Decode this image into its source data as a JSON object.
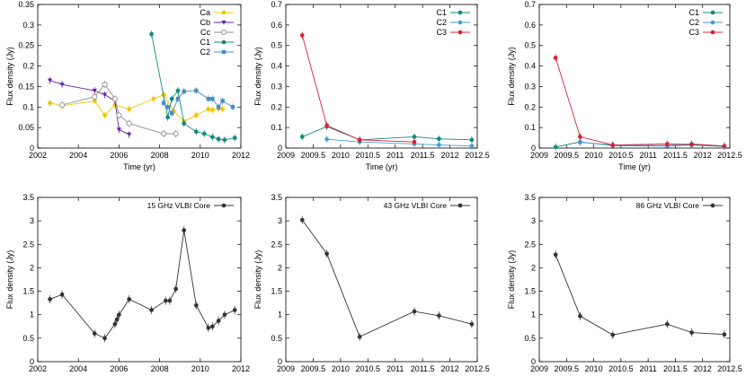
{
  "chart_data": [
    {
      "type": "line",
      "xlabel": "Time (yr)",
      "ylabel": "Flux density (Jy)",
      "xlim": [
        2002,
        2012
      ],
      "ylim": [
        0,
        0.35
      ],
      "xticks": [
        "2002",
        "2004",
        "2006",
        "2008",
        "2010",
        "2012"
      ],
      "yticks": [
        "0",
        "0.05",
        "0.1",
        "0.15",
        "0.2",
        "0.25",
        "0.3",
        "0.35"
      ],
      "legend": "top-right",
      "series": [
        {
          "name": "Ca",
          "color": "#f2c500",
          "marker": "filled-circle",
          "x": [
            2002.6,
            2003.2,
            2004.8,
            2005.3,
            2005.8,
            2006.5,
            2007.7,
            2008.2,
            2008.7,
            2009.2,
            2009.8,
            2010.4,
            2010.6,
            2010.9,
            2011.1
          ],
          "y": [
            0.11,
            0.103,
            0.115,
            0.08,
            0.105,
            0.095,
            0.12,
            0.13,
            0.09,
            0.065,
            0.08,
            0.095,
            0.093,
            0.096,
            0.095
          ]
        },
        {
          "name": "Cb",
          "color": "#6b1fa8",
          "marker": "filled-triangle-down",
          "x": [
            2002.6,
            2003.2,
            2004.8,
            2005.3,
            2005.8,
            2006.0,
            2006.5
          ],
          "y": [
            0.165,
            0.155,
            0.14,
            0.13,
            0.115,
            0.045,
            0.033
          ]
        },
        {
          "name": "Cc",
          "color": "#8c8c8c",
          "marker": "open-circle",
          "x": [
            2003.2,
            2004.8,
            2005.3,
            2005.8,
            2006.0,
            2006.5,
            2008.2,
            2008.8
          ],
          "y": [
            0.105,
            0.125,
            0.155,
            0.12,
            0.08,
            0.06,
            0.035,
            0.035
          ]
        },
        {
          "name": "C1",
          "color": "#0f8c7a",
          "marker": "filled-circle",
          "x": [
            2007.6,
            2008.4,
            2008.6,
            2008.9,
            2009.2,
            2009.8,
            2010.2,
            2010.6,
            2010.9,
            2011.2,
            2011.7
          ],
          "y": [
            0.278,
            0.075,
            0.12,
            0.14,
            0.06,
            0.04,
            0.035,
            0.027,
            0.022,
            0.02,
            0.025
          ]
        },
        {
          "name": "C2",
          "color": "#4a8cc4",
          "marker": "filled-square",
          "x": [
            2008.2,
            2008.4,
            2008.6,
            2008.9,
            2009.2,
            2009.8,
            2010.4,
            2010.6,
            2010.9,
            2011.1,
            2011.6
          ],
          "y": [
            0.11,
            0.1,
            0.085,
            0.12,
            0.138,
            0.14,
            0.12,
            0.12,
            0.1,
            0.115,
            0.1
          ]
        }
      ]
    },
    {
      "type": "line",
      "xlabel": "Time (yr)",
      "ylabel": "Flux density (Jy)",
      "xlim": [
        2009,
        2012.5
      ],
      "ylim": [
        0,
        0.7
      ],
      "xticks": [
        "2009",
        "2009.5",
        "2010",
        "2010.5",
        "2011",
        "2011.5",
        "2012",
        "2012.5"
      ],
      "yticks": [
        "0",
        "0.1",
        "0.2",
        "0.3",
        "0.4",
        "0.5",
        "0.6",
        "0.7"
      ],
      "legend": "top-right",
      "series": [
        {
          "name": "C1",
          "color": "#0f8c7a",
          "marker": "filled-circle",
          "x": [
            2009.3,
            2009.75,
            2010.35,
            2011.35,
            2011.8,
            2012.4
          ],
          "y": [
            0.055,
            0.105,
            0.04,
            0.055,
            0.045,
            0.04
          ]
        },
        {
          "name": "C2",
          "color": "#4a9ad0",
          "marker": "filled-circle",
          "x": [
            2009.75,
            2010.35,
            2011.35,
            2011.8,
            2012.4
          ],
          "y": [
            0.043,
            0.03,
            0.02,
            0.015,
            0.01
          ]
        },
        {
          "name": "C3",
          "color": "#d8203a",
          "marker": "filled-circle",
          "x": [
            2009.3,
            2009.75,
            2010.35,
            2011.35
          ],
          "y": [
            0.55,
            0.11,
            0.04,
            0.03
          ]
        }
      ]
    },
    {
      "type": "line",
      "xlabel": "Time (yr)",
      "ylabel": "Flux density (Jy)",
      "xlim": [
        2009,
        2012.5
      ],
      "ylim": [
        0,
        0.7
      ],
      "xticks": [
        "2009",
        "2009.5",
        "2010",
        "2010.5",
        "2011",
        "2011.5",
        "2012",
        "2012.5"
      ],
      "yticks": [
        "0",
        "0.1",
        "0.2",
        "0.3",
        "0.4",
        "0.5",
        "0.6",
        "0.7"
      ],
      "legend": "top-right",
      "series": [
        {
          "name": "C1",
          "color": "#0f8c7a",
          "marker": "filled-circle",
          "x": [
            2009.3,
            2009.75,
            2010.35,
            2011.35,
            2011.8,
            2012.4
          ],
          "y": [
            0.005,
            0.03,
            0.012,
            0.01,
            0.015,
            0.008
          ]
        },
        {
          "name": "C2",
          "color": "#4a9ad0",
          "marker": "filled-circle",
          "x": [
            2009.75,
            2010.35,
            2011.35,
            2011.8,
            2012.4
          ],
          "y": [
            0.028,
            0.015,
            0.012,
            0.02,
            0.01
          ]
        },
        {
          "name": "C3",
          "color": "#d8203a",
          "marker": "filled-circle",
          "x": [
            2009.3,
            2009.75,
            2010.35,
            2011.35,
            2011.8,
            2012.4
          ],
          "y": [
            0.44,
            0.055,
            0.015,
            0.02,
            0.018,
            0.01
          ]
        }
      ]
    },
    {
      "type": "line",
      "xlabel": "Time (yr)",
      "ylabel": "Flux density (Jy)",
      "xlim": [
        2002,
        2012
      ],
      "ylim": [
        0,
        3.5
      ],
      "xticks": [
        "2002",
        "2004",
        "2006",
        "2008",
        "2010",
        "2012"
      ],
      "yticks": [
        "0",
        "0.5",
        "1",
        "1.5",
        "2",
        "2.5",
        "3",
        "3.5"
      ],
      "legend": "top-right",
      "series": [
        {
          "name": "15 GHz VLBI Core",
          "color": "#333333",
          "marker": "filled-circle",
          "x": [
            2002.6,
            2003.2,
            2004.8,
            2005.3,
            2005.8,
            2005.9,
            2006.0,
            2006.5,
            2007.6,
            2008.3,
            2008.5,
            2008.8,
            2009.2,
            2009.8,
            2010.4,
            2010.6,
            2010.9,
            2011.2,
            2011.7
          ],
          "y": [
            1.33,
            1.43,
            0.6,
            0.5,
            0.8,
            0.9,
            1.0,
            1.33,
            1.1,
            1.3,
            1.3,
            1.55,
            2.8,
            1.2,
            0.72,
            0.75,
            0.87,
            1.0,
            1.1
          ]
        }
      ]
    },
    {
      "type": "line",
      "xlabel": "Time (yr)",
      "ylabel": "Flux density (Jy)",
      "xlim": [
        2009,
        2012.5
      ],
      "ylim": [
        0,
        3.5
      ],
      "xticks": [
        "2009",
        "2009.5",
        "2010",
        "2010.5",
        "2011",
        "2011.5",
        "2012",
        "2012.5"
      ],
      "yticks": [
        "0",
        "0.5",
        "1",
        "1.5",
        "2",
        "2.5",
        "3",
        "3.5"
      ],
      "legend": "top-right",
      "series": [
        {
          "name": "43 GHz VLBI Core",
          "color": "#333333",
          "marker": "filled-circle",
          "x": [
            2009.3,
            2009.75,
            2010.35,
            2011.35,
            2011.8,
            2012.4
          ],
          "y": [
            3.02,
            2.3,
            0.53,
            1.07,
            0.98,
            0.8
          ]
        }
      ]
    },
    {
      "type": "line",
      "xlabel": "Time (yr)",
      "ylabel": "Flux density (Jy)",
      "xlim": [
        2009,
        2012.5
      ],
      "ylim": [
        0,
        3.5
      ],
      "xticks": [
        "2009",
        "2009.5",
        "2010",
        "2010.5",
        "2011",
        "2011.5",
        "2012",
        "2012.5"
      ],
      "yticks": [
        "0",
        "0.5",
        "1",
        "1.5",
        "2",
        "2.5",
        "3",
        "3.5"
      ],
      "legend": "top-right",
      "series": [
        {
          "name": "86 GHz VLBI Core",
          "color": "#333333",
          "marker": "filled-circle",
          "x": [
            2009.3,
            2009.75,
            2010.35,
            2011.35,
            2011.8,
            2012.4
          ],
          "y": [
            2.28,
            0.97,
            0.57,
            0.8,
            0.62,
            0.58
          ]
        }
      ]
    }
  ]
}
